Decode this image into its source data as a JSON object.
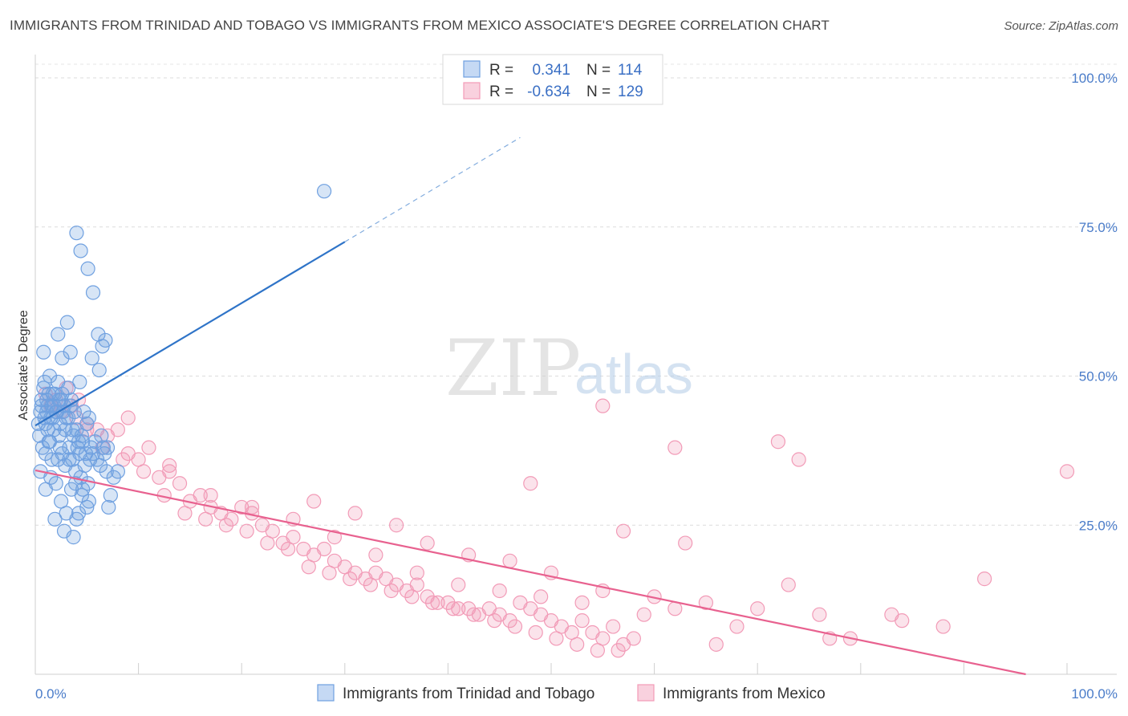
{
  "title": "IMMIGRANTS FROM TRINIDAD AND TOBAGO VS IMMIGRANTS FROM MEXICO ASSOCIATE'S DEGREE CORRELATION CHART",
  "source": "Source: ZipAtlas.com",
  "watermark": {
    "zip": "ZIP",
    "atlas": "atlas"
  },
  "legend": {
    "rows": [
      {
        "r_label": "R =",
        "r_value": "0.341",
        "n_label": "N =",
        "n_value": "114"
      },
      {
        "r_label": "R =",
        "r_value": "-0.634",
        "n_label": "N =",
        "n_value": "129"
      }
    ]
  },
  "chart_data": {
    "type": "scatter",
    "title": "IMMIGRANTS FROM TRINIDAD AND TOBAGO VS IMMIGRANTS FROM MEXICO ASSOCIATE'S DEGREE CORRELATION CHART",
    "xlabel": "",
    "ylabel": "Associate's Degree",
    "xlim": [
      0,
      100
    ],
    "ylim": [
      0,
      100
    ],
    "x_tick_labels": {
      "left": "0.0%",
      "right": "100.0%"
    },
    "y_ticks": [
      {
        "value": 100,
        "label": "100.0%"
      },
      {
        "value": 75,
        "label": "75.0%"
      },
      {
        "value": 50,
        "label": "50.0%"
      },
      {
        "value": 25,
        "label": "25.0%"
      }
    ],
    "grid": "horizontal dashed",
    "legend_position": "top-center",
    "series": [
      {
        "name": "Immigrants from Trinidad and Tobago",
        "color": "#6fa0e0",
        "line_color": "#2f74c8",
        "r": 0.341,
        "n": 114,
        "trend": {
          "x0": 0,
          "y0": 41.7,
          "x1": 30,
          "y1": 72.5,
          "dashed_to_x": 47,
          "dashed_to_y": 90
        },
        "points": [
          [
            0.5,
            44
          ],
          [
            0.6,
            46
          ],
          [
            0.8,
            48
          ],
          [
            1,
            42
          ],
          [
            1.2,
            45
          ],
          [
            1.5,
            43
          ],
          [
            1.7,
            47
          ],
          [
            2,
            44
          ],
          [
            2.2,
            49
          ],
          [
            2.5,
            46
          ],
          [
            0.4,
            40
          ],
          [
            0.7,
            38
          ],
          [
            1,
            37
          ],
          [
            1.3,
            39
          ],
          [
            1.6,
            36
          ],
          [
            1.8,
            41
          ],
          [
            2.1,
            44
          ],
          [
            2.4,
            42
          ],
          [
            2.8,
            45
          ],
          [
            3,
            43
          ],
          [
            3.2,
            48
          ],
          [
            3.5,
            46
          ],
          [
            3.8,
            44
          ],
          [
            4,
            41
          ],
          [
            4.2,
            39
          ],
          [
            0.3,
            42
          ],
          [
            0.9,
            43
          ],
          [
            1.1,
            46
          ],
          [
            1.4,
            50
          ],
          [
            1.9,
            47
          ],
          [
            2.3,
            40
          ],
          [
            2.6,
            37
          ],
          [
            2.9,
            35
          ],
          [
            3.3,
            38
          ],
          [
            3.6,
            36
          ],
          [
            3.9,
            34
          ],
          [
            4.3,
            37
          ],
          [
            4.6,
            39
          ],
          [
            5,
            42
          ],
          [
            5.3,
            36
          ],
          [
            0.5,
            34
          ],
          [
            1,
            31
          ],
          [
            1.5,
            33
          ],
          [
            2,
            32
          ],
          [
            2.5,
            29
          ],
          [
            3,
            27
          ],
          [
            3.5,
            31
          ],
          [
            4,
            26
          ],
          [
            4.5,
            30
          ],
          [
            5,
            28
          ],
          [
            0.8,
            54
          ],
          [
            2.2,
            57
          ],
          [
            3.1,
            59
          ],
          [
            3.4,
            54
          ],
          [
            4.3,
            49
          ],
          [
            5.5,
            53
          ],
          [
            6.1,
            57
          ],
          [
            6.5,
            55
          ],
          [
            6.8,
            56
          ],
          [
            6.2,
            51
          ],
          [
            2.6,
            53
          ],
          [
            1.3,
            47
          ],
          [
            1.6,
            45
          ],
          [
            2.7,
            44
          ],
          [
            3.6,
            41
          ],
          [
            4.1,
            38
          ],
          [
            4.8,
            35
          ],
          [
            5.6,
            37
          ],
          [
            6.4,
            40
          ],
          [
            7,
            38
          ],
          [
            1.9,
            26
          ],
          [
            2.8,
            24
          ],
          [
            3.7,
            23
          ],
          [
            4.2,
            27
          ],
          [
            5.2,
            29
          ],
          [
            6.9,
            34
          ],
          [
            7.1,
            28
          ],
          [
            1.2,
            41
          ],
          [
            2.4,
            38
          ],
          [
            3.3,
            36
          ],
          [
            4.4,
            33
          ],
          [
            0.6,
            45
          ],
          [
            1.7,
            43
          ],
          [
            2.9,
            41
          ],
          [
            3.7,
            40
          ],
          [
            4.9,
            37
          ],
          [
            5.8,
            39
          ],
          [
            6.3,
            35
          ],
          [
            7.3,
            30
          ],
          [
            8,
            34
          ],
          [
            1.4,
            39
          ],
          [
            2.2,
            36
          ],
          [
            3.9,
            32
          ],
          [
            4.6,
            31
          ],
          [
            5.1,
            32
          ],
          [
            6,
            36
          ],
          [
            6.6,
            38
          ],
          [
            4,
            74
          ],
          [
            4.4,
            71
          ],
          [
            5.1,
            68
          ],
          [
            5.6,
            64
          ],
          [
            28,
            81
          ],
          [
            0.9,
            49
          ],
          [
            1.8,
            45
          ],
          [
            2.6,
            47
          ],
          [
            3.4,
            45
          ],
          [
            4.7,
            44
          ],
          [
            5.2,
            43
          ],
          [
            6.7,
            37
          ],
          [
            7.6,
            33
          ],
          [
            1.1,
            44
          ],
          [
            2.3,
            46
          ],
          [
            3.2,
            43
          ],
          [
            4.5,
            40
          ],
          [
            5.4,
            38
          ]
        ]
      },
      {
        "name": "Immigrants from Mexico",
        "color": "#f29bb7",
        "line_color": "#e8618f",
        "r": -0.634,
        "n": 129,
        "trend": {
          "x0": 0,
          "y0": 34.2,
          "x1": 96,
          "y1": 0
        },
        "points": [
          [
            1,
            47
          ],
          [
            1.5,
            45
          ],
          [
            2,
            46
          ],
          [
            2.5,
            44
          ],
          [
            3,
            48
          ],
          [
            3.5,
            45
          ],
          [
            4,
            43
          ],
          [
            5,
            42
          ],
          [
            6,
            41
          ],
          [
            7,
            40
          ],
          [
            8,
            41
          ],
          [
            9,
            43
          ],
          [
            10,
            36
          ],
          [
            11,
            38
          ],
          [
            12,
            33
          ],
          [
            13,
            34
          ],
          [
            14,
            32
          ],
          [
            15,
            29
          ],
          [
            16,
            30
          ],
          [
            17,
            28
          ],
          [
            18,
            27
          ],
          [
            19,
            26
          ],
          [
            20,
            28
          ],
          [
            21,
            27
          ],
          [
            22,
            25
          ],
          [
            23,
            24
          ],
          [
            24,
            22
          ],
          [
            25,
            23
          ],
          [
            26,
            21
          ],
          [
            27,
            20
          ],
          [
            28,
            21
          ],
          [
            29,
            19
          ],
          [
            30,
            18
          ],
          [
            31,
            17
          ],
          [
            32,
            16
          ],
          [
            33,
            17
          ],
          [
            34,
            16
          ],
          [
            35,
            15
          ],
          [
            36,
            14
          ],
          [
            37,
            15
          ],
          [
            38,
            13
          ],
          [
            39,
            12
          ],
          [
            40,
            12
          ],
          [
            41,
            11
          ],
          [
            42,
            11
          ],
          [
            43,
            10
          ],
          [
            44,
            11
          ],
          [
            45,
            10
          ],
          [
            46,
            9
          ],
          [
            47,
            12
          ],
          [
            48,
            11
          ],
          [
            49,
            10
          ],
          [
            50,
            9
          ],
          [
            51,
            8
          ],
          [
            52,
            7
          ],
          [
            53,
            9
          ],
          [
            54,
            7
          ],
          [
            55,
            6
          ],
          [
            56,
            8
          ],
          [
            57,
            5
          ],
          [
            58,
            6
          ],
          [
            4.2,
            46
          ],
          [
            6.5,
            38
          ],
          [
            8.5,
            36
          ],
          [
            10.5,
            34
          ],
          [
            12.5,
            30
          ],
          [
            14.5,
            27
          ],
          [
            16.5,
            26
          ],
          [
            18.5,
            25
          ],
          [
            20.5,
            24
          ],
          [
            22.5,
            22
          ],
          [
            24.5,
            21
          ],
          [
            26.5,
            18
          ],
          [
            28.5,
            17
          ],
          [
            30.5,
            16
          ],
          [
            32.5,
            15
          ],
          [
            34.5,
            14
          ],
          [
            36.5,
            13
          ],
          [
            38.5,
            12
          ],
          [
            40.5,
            11
          ],
          [
            42.5,
            10
          ],
          [
            44.5,
            9
          ],
          [
            46.5,
            8
          ],
          [
            48.5,
            7
          ],
          [
            50.5,
            6
          ],
          [
            52.5,
            5
          ],
          [
            54.5,
            4
          ],
          [
            56.5,
            4
          ],
          [
            27,
            29
          ],
          [
            31,
            27
          ],
          [
            35,
            25
          ],
          [
            38,
            22
          ],
          [
            42,
            20
          ],
          [
            46,
            19
          ],
          [
            50,
            17
          ],
          [
            55,
            14
          ],
          [
            60,
            13
          ],
          [
            65,
            12
          ],
          [
            70,
            11
          ],
          [
            76,
            10
          ],
          [
            84,
            9
          ],
          [
            48,
            32
          ],
          [
            57,
            24
          ],
          [
            63,
            22
          ],
          [
            73,
            15
          ],
          [
            92,
            16
          ],
          [
            100,
            34
          ],
          [
            55,
            45
          ],
          [
            62,
            38
          ],
          [
            72,
            39
          ],
          [
            74,
            36
          ],
          [
            79,
            6
          ],
          [
            83,
            10
          ],
          [
            88,
            8
          ],
          [
            66,
            5
          ],
          [
            5,
            41
          ],
          [
            9,
            37
          ],
          [
            13,
            35
          ],
          [
            17,
            30
          ],
          [
            21,
            28
          ],
          [
            25,
            26
          ],
          [
            29,
            23
          ],
          [
            33,
            20
          ],
          [
            37,
            17
          ],
          [
            41,
            15
          ],
          [
            45,
            14
          ],
          [
            49,
            13
          ],
          [
            53,
            12
          ],
          [
            59,
            10
          ],
          [
            62,
            11
          ],
          [
            68,
            8
          ],
          [
            77,
            6
          ]
        ]
      }
    ]
  },
  "bottom_legend": [
    {
      "label": "Immigrants from Trinidad and Tobago"
    },
    {
      "label": "Immigrants from Mexico"
    }
  ]
}
